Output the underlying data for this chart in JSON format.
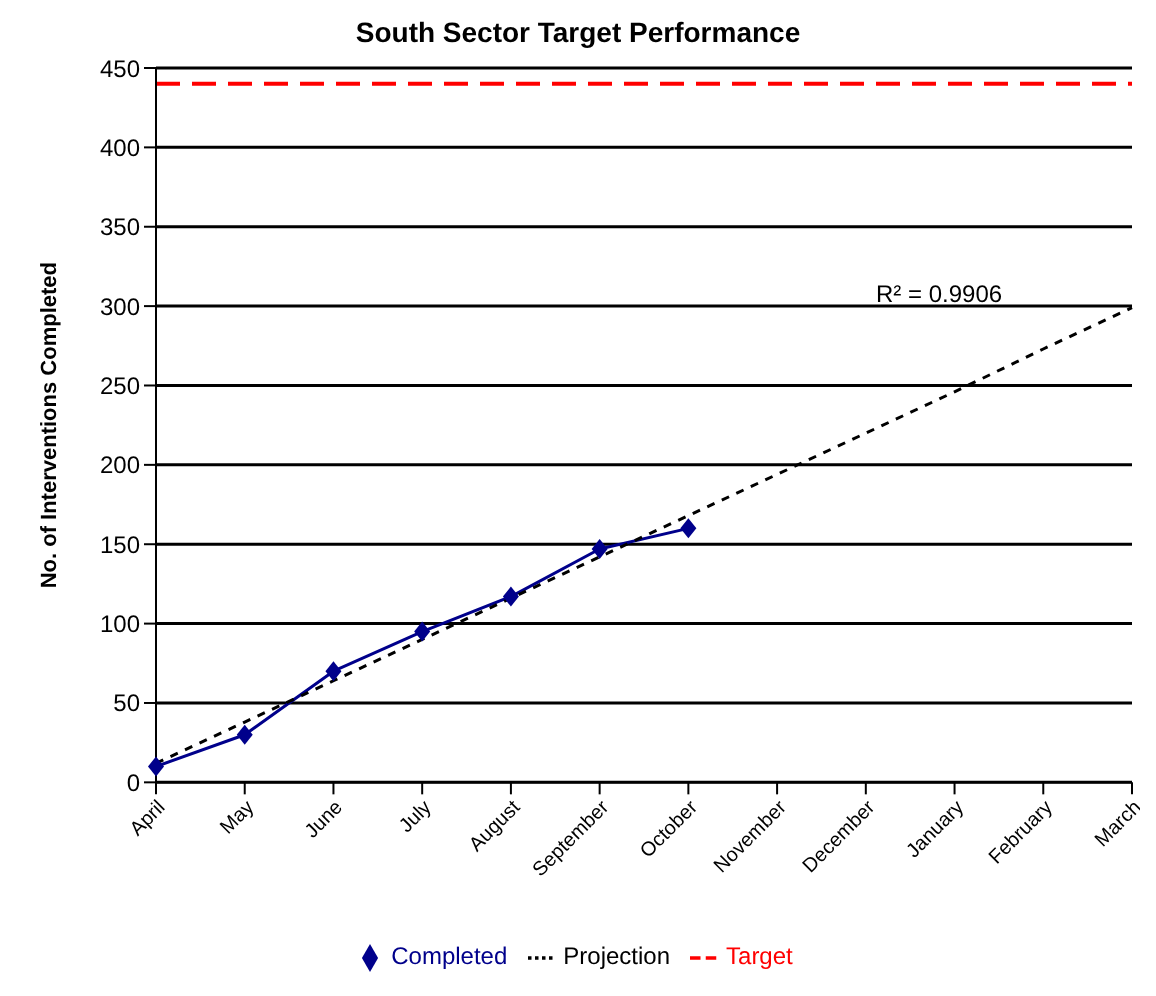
{
  "chart_data": {
    "type": "line",
    "title": "South Sector Target Performance",
    "ylabel": "No. of Interventions Completed",
    "categories": [
      "April",
      "May",
      "June",
      "July",
      "August",
      "September",
      "October",
      "November",
      "December",
      "January",
      "February",
      "March"
    ],
    "series": [
      {
        "name": "Completed",
        "color": "#00008b",
        "marker": "diamond",
        "line_style": "solid",
        "values": [
          10,
          30,
          70,
          95,
          117,
          147,
          160,
          null,
          null,
          null,
          null,
          null
        ]
      },
      {
        "name": "Target",
        "color": "#ff0000",
        "marker": "none",
        "line_style": "dashed",
        "values": [
          440,
          440,
          440,
          440,
          440,
          440,
          440,
          440,
          440,
          440,
          440,
          440
        ]
      },
      {
        "name": "Projection",
        "color": "#000000",
        "marker": "none",
        "line_style": "dotted",
        "values": [
          12,
          38,
          64,
          90,
          116,
          142,
          168,
          194,
          220,
          246,
          273,
          299
        ]
      }
    ],
    "ylim": [
      0,
      450
    ],
    "yticks": [
      0,
      50,
      100,
      150,
      200,
      250,
      300,
      350,
      400,
      450
    ],
    "grid": "y",
    "legend": "bottom",
    "annotations": [
      "R² = 0.9906"
    ]
  }
}
